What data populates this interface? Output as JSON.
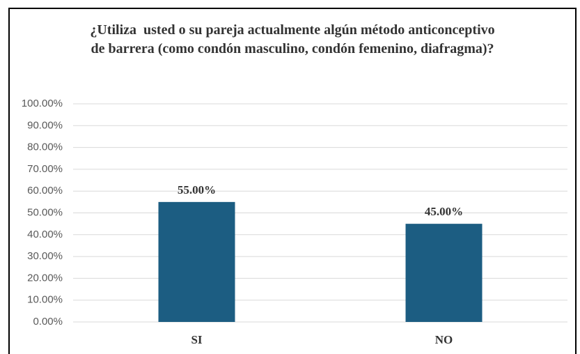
{
  "chart_data": {
    "type": "bar",
    "title": "¿Utiliza  usted o su pareja actualmente algún método anticonceptivo de barrera (como condón masculino, condón femenino, diafragma)?",
    "categories": [
      "SI",
      "NO"
    ],
    "values": [
      55,
      45
    ],
    "value_labels": [
      "55.00%",
      "45.00%"
    ],
    "color": "#1c5d82",
    "ylim": [
      0,
      100
    ],
    "yticks": [
      {
        "value": 0,
        "label": "0.00%"
      },
      {
        "value": 10,
        "label": "10.00%"
      },
      {
        "value": 20,
        "label": "20.00%"
      },
      {
        "value": 30,
        "label": "30.00%"
      },
      {
        "value": 40,
        "label": "40.00%"
      },
      {
        "value": 50,
        "label": "50.00%"
      },
      {
        "value": 60,
        "label": "60.00%"
      },
      {
        "value": 70,
        "label": "70.00%"
      },
      {
        "value": 80,
        "label": "80.00%"
      },
      {
        "value": 90,
        "label": "90.00%"
      },
      {
        "value": 100,
        "label": "100.00%"
      }
    ],
    "grid": true
  }
}
